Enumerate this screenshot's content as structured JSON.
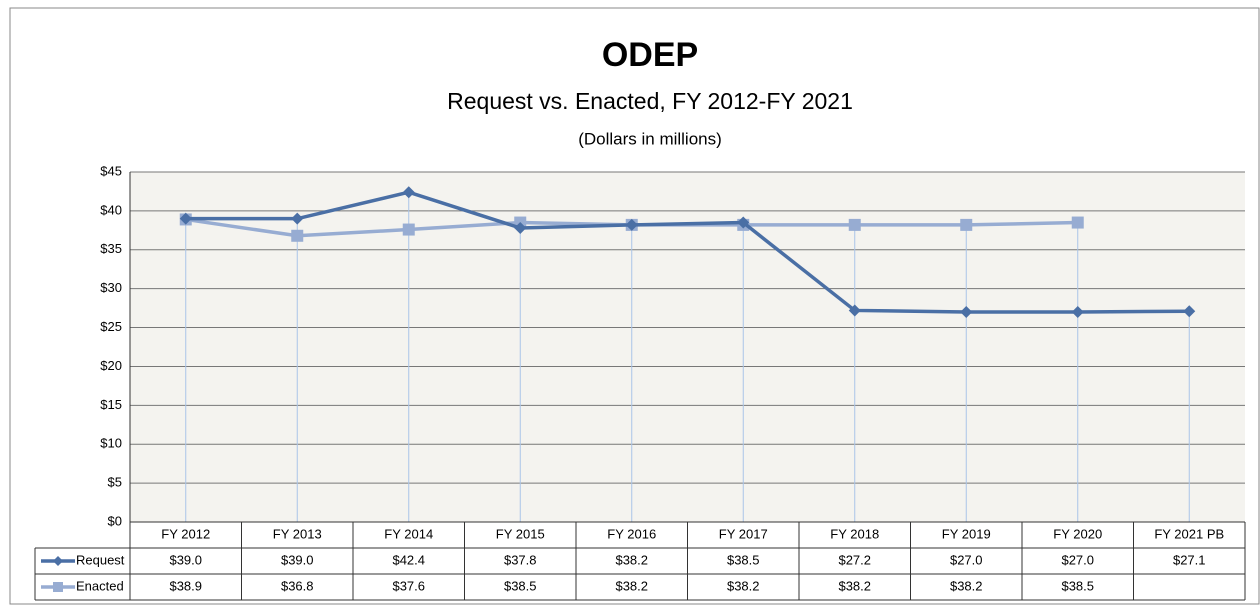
{
  "chart_data": {
    "type": "line",
    "title": "ODEP",
    "subtitle": "Request vs. Enacted, FY 2012-FY 2021",
    "note": "(Dollars in millions)",
    "categories": [
      "FY 2012",
      "FY 2013",
      "FY 2014",
      "FY 2015",
      "FY 2016",
      "FY 2017",
      "FY 2018",
      "FY 2019",
      "FY 2020",
      "FY 2021 PB"
    ],
    "series": [
      {
        "name": "Request",
        "color": "#4a6fa5",
        "marker": "diamond",
        "values": [
          39.0,
          39.0,
          42.4,
          37.8,
          38.2,
          38.5,
          27.2,
          27.0,
          27.0,
          27.1
        ],
        "value_labels": [
          "$39.0",
          "$39.0",
          "$42.4",
          "$37.8",
          "$38.2",
          "$38.5",
          "$27.2",
          "$27.0",
          "$27.0",
          "$27.1"
        ]
      },
      {
        "name": "Enacted",
        "color": "#97acd2",
        "marker": "square",
        "values": [
          38.9,
          36.8,
          37.6,
          38.5,
          38.2,
          38.2,
          38.2,
          38.2,
          38.5,
          null
        ],
        "value_labels": [
          "$38.9",
          "$36.8",
          "$37.6",
          "$38.5",
          "$38.2",
          "$38.2",
          "$38.2",
          "$38.2",
          "$38.5",
          null
        ]
      }
    ],
    "ylim": [
      0,
      45
    ],
    "yticks": [
      {
        "value": 0,
        "label": "$0"
      },
      {
        "value": 5,
        "label": "$5"
      },
      {
        "value": 10,
        "label": "$10"
      },
      {
        "value": 15,
        "label": "$15"
      },
      {
        "value": 20,
        "label": "$20"
      },
      {
        "value": 25,
        "label": "$25"
      },
      {
        "value": 30,
        "label": "$30"
      },
      {
        "value": 35,
        "label": "$35"
      },
      {
        "value": 40,
        "label": "$40"
      },
      {
        "value": 45,
        "label": "$45"
      }
    ],
    "grid": true
  }
}
